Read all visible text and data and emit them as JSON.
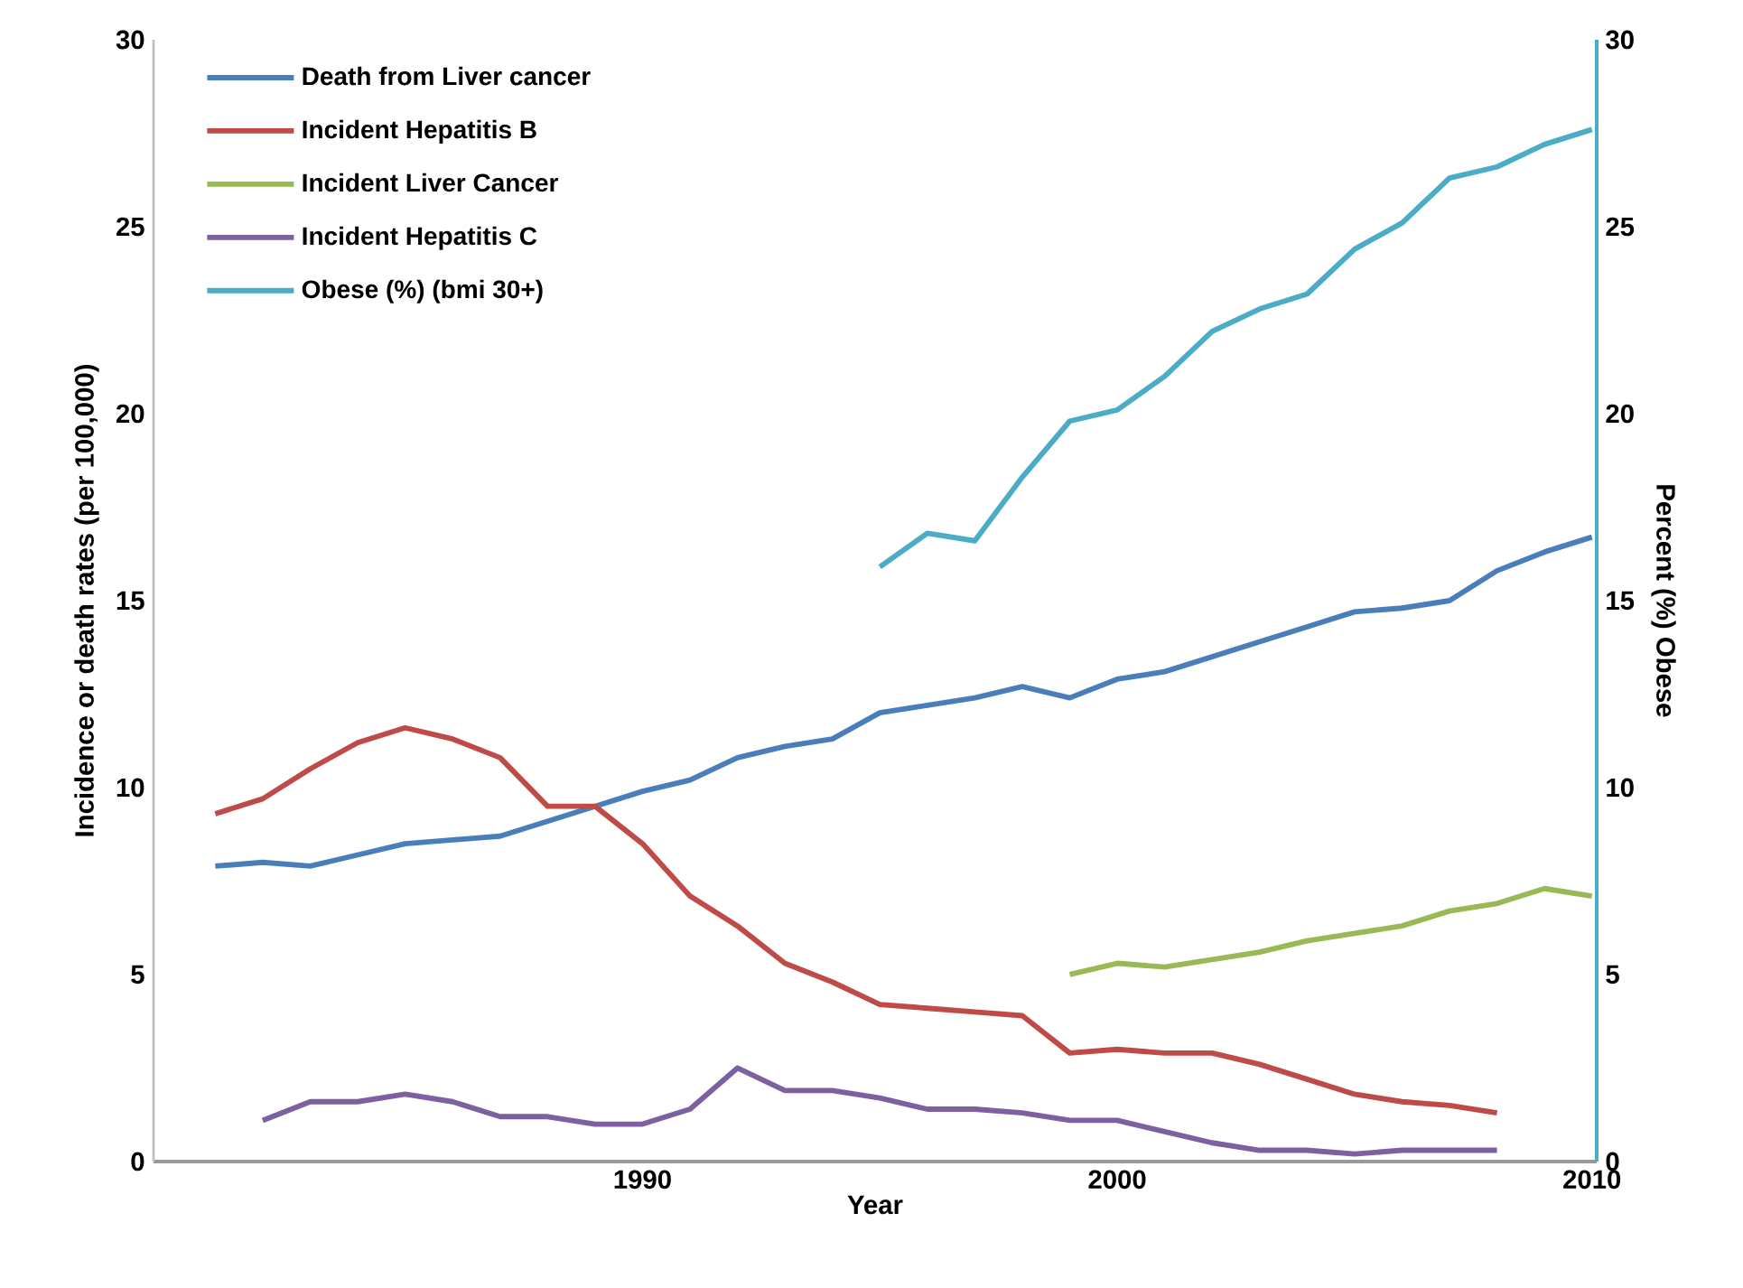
{
  "chart_data": {
    "type": "line",
    "xlabel": "Year",
    "ylabel": "Incidence or death rates (per 100,000)",
    "y2label": "Percent (%) Obese",
    "xlim": [
      1979.7,
      2010.1
    ],
    "xticks": [
      1990,
      2000,
      2010
    ],
    "ylim": [
      0,
      30
    ],
    "yticks": [
      0,
      5,
      10,
      15,
      20,
      25,
      30
    ],
    "y2lim": [
      0,
      30
    ],
    "y2ticks": [
      0,
      5,
      10,
      15,
      20,
      25,
      30
    ],
    "legend": "top left",
    "line_style": "solid",
    "series": [
      {
        "name": "Death from  Liver cancer",
        "color": "#4a7ebb",
        "x": [
          1981,
          1982,
          1983,
          1984,
          1985,
          1986,
          1987,
          1988,
          1989,
          1990,
          1991,
          1992,
          1993,
          1994,
          1995,
          1996,
          1997,
          1998,
          1999,
          2000,
          2001,
          2002,
          2003,
          2004,
          2005,
          2006,
          2007,
          2008,
          2009,
          2010
        ],
        "values": [
          7.9,
          8.0,
          7.9,
          8.2,
          8.5,
          8.6,
          8.7,
          9.1,
          9.5,
          9.9,
          10.2,
          10.8,
          11.1,
          11.3,
          12.0,
          12.2,
          12.4,
          12.7,
          12.4,
          12.9,
          13.1,
          13.5,
          13.9,
          14.3,
          14.7,
          14.8,
          15.0,
          15.8,
          16.3,
          16.7
        ]
      },
      {
        "name": "Incident Hepatitis B",
        "color": "#be4b48",
        "x": [
          1981,
          1982,
          1983,
          1984,
          1985,
          1986,
          1987,
          1988,
          1989,
          1990,
          1991,
          1992,
          1993,
          1994,
          1995,
          1996,
          1997,
          1998,
          1999,
          2000,
          2001,
          2002,
          2003,
          2004,
          2005,
          2006,
          2007,
          2008
        ],
        "values": [
          9.3,
          9.7,
          10.5,
          11.2,
          11.6,
          11.3,
          10.8,
          9.5,
          9.5,
          8.5,
          7.1,
          6.3,
          5.3,
          4.8,
          4.2,
          4.1,
          4.0,
          3.9,
          2.9,
          3.0,
          2.9,
          2.9,
          2.6,
          2.2,
          1.8,
          1.6,
          1.5,
          1.3
        ]
      },
      {
        "name": "Incident Liver Cancer",
        "color": "#98b954",
        "x": [
          1999,
          2000,
          2001,
          2002,
          2003,
          2004,
          2005,
          2006,
          2007,
          2008,
          2009,
          2010
        ],
        "values": [
          5.0,
          5.3,
          5.2,
          5.4,
          5.6,
          5.9,
          6.1,
          6.3,
          6.7,
          6.9,
          7.3,
          7.1
        ]
      },
      {
        "name": "Incident Hepatitis C",
        "color": "#7d60a0",
        "x": [
          1982,
          1983,
          1984,
          1985,
          1986,
          1987,
          1988,
          1989,
          1990,
          1991,
          1992,
          1993,
          1994,
          1995,
          1996,
          1997,
          1998,
          1999,
          2000,
          2001,
          2002,
          2003,
          2004,
          2005,
          2006,
          2007,
          2008
        ],
        "values": [
          1.1,
          1.6,
          1.6,
          1.8,
          1.6,
          1.2,
          1.2,
          1.0,
          1.0,
          1.4,
          2.5,
          1.9,
          1.9,
          1.7,
          1.4,
          1.4,
          1.3,
          1.1,
          1.1,
          0.8,
          0.5,
          0.3,
          0.3,
          0.2,
          0.3,
          0.3,
          0.3
        ]
      },
      {
        "name": "Obese (%) (bmi 30+)",
        "color": "#4bacc6",
        "axis": "y2",
        "x": [
          1995,
          1996,
          1997,
          1998,
          1999,
          2000,
          2001,
          2002,
          2003,
          2004,
          2005,
          2006,
          2007,
          2008,
          2009,
          2010
        ],
        "values": [
          15.9,
          16.8,
          16.6,
          18.3,
          19.8,
          20.1,
          21.0,
          22.2,
          22.8,
          23.2,
          24.4,
          25.1,
          26.3,
          26.6,
          27.2,
          27.6
        ]
      }
    ]
  }
}
